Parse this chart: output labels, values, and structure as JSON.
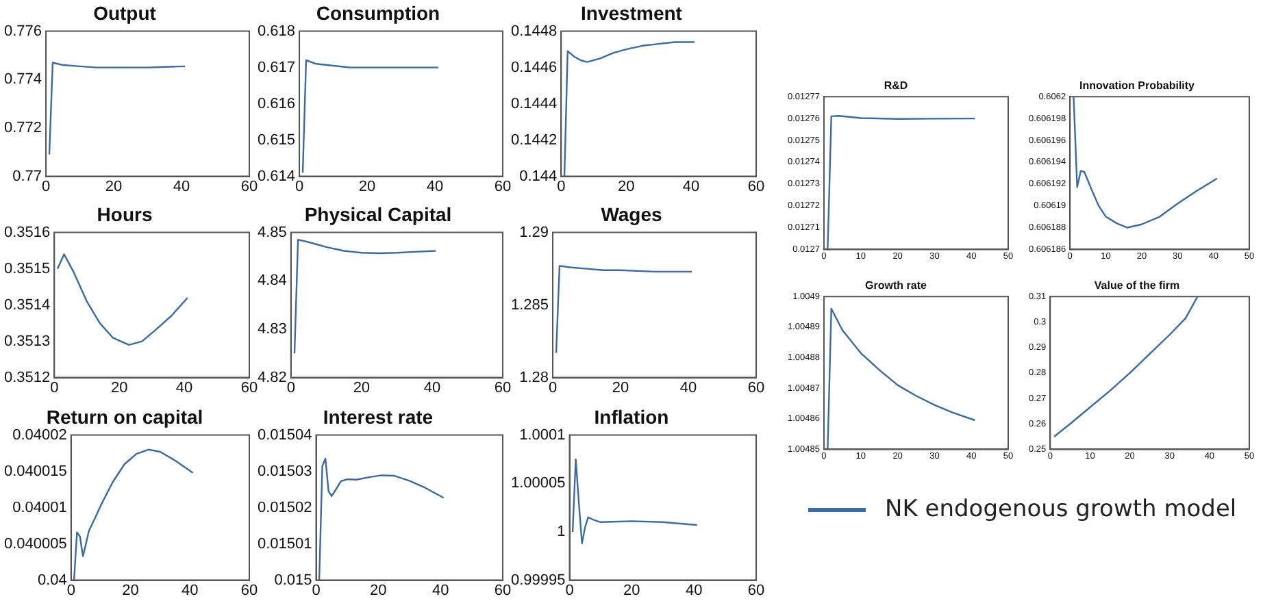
{
  "chart_data": [
    {
      "type": "line",
      "title": "Output",
      "x": [
        1,
        2,
        5,
        10,
        15,
        20,
        30,
        41
      ],
      "values": [
        0.7709,
        0.7747,
        0.7746,
        0.77455,
        0.7745,
        0.7745,
        0.7745,
        0.77455
      ],
      "color": "#3b6aa0",
      "xlim": [
        0,
        60
      ],
      "xticks": [
        0,
        20,
        40,
        60
      ],
      "ylim": [
        0.77,
        0.776
      ],
      "yticks": [
        0.77,
        0.772,
        0.774,
        0.776
      ],
      "grid": false,
      "marker": "none"
    },
    {
      "type": "line",
      "title": "Consumption",
      "x": [
        1,
        2,
        5,
        10,
        15,
        20,
        30,
        41
      ],
      "values": [
        0.6141,
        0.6172,
        0.6171,
        0.61705,
        0.617,
        0.617,
        0.617,
        0.617
      ],
      "color": "#3b6aa0",
      "xlim": [
        0,
        60
      ],
      "xticks": [
        0,
        20,
        40,
        60
      ],
      "ylim": [
        0.614,
        0.618
      ],
      "yticks": [
        0.614,
        0.615,
        0.616,
        0.617,
        0.618
      ],
      "grid": false,
      "marker": "none"
    },
    {
      "type": "line",
      "title": "Investment",
      "x": [
        1,
        2,
        4,
        6,
        8,
        12,
        16,
        20,
        25,
        30,
        35,
        41
      ],
      "values": [
        0.144,
        0.14469,
        0.14466,
        0.14464,
        0.14463,
        0.14465,
        0.14468,
        0.1447,
        0.14472,
        0.14473,
        0.14474,
        0.14474
      ],
      "color": "#3b6aa0",
      "xlim": [
        0,
        60
      ],
      "xticks": [
        0,
        20,
        40,
        60
      ],
      "ylim": [
        0.144,
        0.1448
      ],
      "yticks": [
        0.144,
        0.1442,
        0.1444,
        0.1446,
        0.1448
      ],
      "grid": false,
      "marker": "none"
    },
    {
      "type": "line",
      "title": "Hours",
      "x": [
        1,
        3,
        6,
        10,
        14,
        18,
        23,
        27,
        31,
        36,
        41
      ],
      "values": [
        0.3515,
        0.35154,
        0.35149,
        0.35141,
        0.35135,
        0.35131,
        0.35129,
        0.3513,
        0.35133,
        0.35137,
        0.35142
      ],
      "color": "#3b6aa0",
      "xlim": [
        0,
        60
      ],
      "xticks": [
        0,
        20,
        40,
        60
      ],
      "ylim": [
        0.3512,
        0.3516
      ],
      "yticks": [
        0.3512,
        0.3513,
        0.3514,
        0.3515,
        0.3516
      ],
      "grid": false,
      "marker": "none"
    },
    {
      "type": "line",
      "title": "Physical Capital",
      "x": [
        1,
        2,
        5,
        10,
        15,
        20,
        25,
        30,
        35,
        41
      ],
      "values": [
        4.825,
        4.8485,
        4.848,
        4.847,
        4.8462,
        4.8458,
        4.8457,
        4.8458,
        4.846,
        4.8462
      ],
      "color": "#3b6aa0",
      "xlim": [
        0,
        60
      ],
      "xticks": [
        0,
        20,
        40,
        60
      ],
      "ylim": [
        4.82,
        4.85
      ],
      "yticks": [
        4.82,
        4.83,
        4.84,
        4.85
      ],
      "grid": false,
      "marker": "none"
    },
    {
      "type": "line",
      "title": "Wages",
      "x": [
        1,
        2,
        5,
        10,
        15,
        20,
        30,
        41
      ],
      "values": [
        1.2817,
        1.2877,
        1.2876,
        1.2875,
        1.2874,
        1.2874,
        1.2873,
        1.2873
      ],
      "color": "#3b6aa0",
      "xlim": [
        0,
        60
      ],
      "xticks": [
        0,
        20,
        40,
        60
      ],
      "ylim": [
        1.28,
        1.29
      ],
      "yticks": [
        1.28,
        1.285,
        1.29
      ],
      "grid": false,
      "marker": "none"
    },
    {
      "type": "line",
      "title": "Return on capital",
      "x": [
        1,
        2,
        3,
        4,
        5,
        6,
        8,
        10,
        14,
        18,
        22,
        26,
        30,
        35,
        41
      ],
      "values": [
        0.04,
        0.0400066,
        0.040006,
        0.0400033,
        0.040005,
        0.0400068,
        0.0400085,
        0.0400103,
        0.0400135,
        0.040016,
        0.0400174,
        0.040018,
        0.0400177,
        0.0400165,
        0.0400148
      ],
      "color": "#3b6aa0",
      "xlim": [
        0,
        60
      ],
      "xticks": [
        0,
        20,
        40,
        60
      ],
      "ylim": [
        0.04,
        0.04002
      ],
      "yticks": [
        0.04,
        0.040005,
        0.04001,
        0.040015,
        0.04002
      ],
      "grid": false,
      "marker": "none"
    },
    {
      "type": "line",
      "title": "Interest rate",
      "x": [
        1,
        2,
        3,
        4,
        5,
        6,
        8,
        10,
        13,
        17,
        21,
        25,
        30,
        35,
        41
      ],
      "values": [
        0.015,
        0.0150315,
        0.0150335,
        0.0150245,
        0.0150232,
        0.0150245,
        0.0150273,
        0.0150278,
        0.0150277,
        0.0150284,
        0.0150289,
        0.0150288,
        0.0150274,
        0.0150255,
        0.0150227
      ],
      "color": "#3b6aa0",
      "xlim": [
        0,
        60
      ],
      "xticks": [
        0,
        20,
        40,
        60
      ],
      "ylim": [
        0.015,
        0.01504
      ],
      "yticks": [
        0.015,
        0.01501,
        0.01502,
        0.01503,
        0.01504
      ],
      "grid": false,
      "marker": "none"
    },
    {
      "type": "line",
      "title": "Inflation",
      "x": [
        1,
        2,
        3,
        4,
        5,
        6,
        8,
        10,
        20,
        30,
        41
      ],
      "values": [
        1.0,
        1.000075,
        1.00003,
        0.999988,
        1.000005,
        1.000015,
        1.000012,
        1.00001,
        1.000011,
        1.00001,
        1.000007
      ],
      "color": "#3b6aa0",
      "xlim": [
        0,
        60
      ],
      "xticks": [
        0,
        20,
        40,
        60
      ],
      "ylim": [
        0.99995,
        1.0001
      ],
      "yticks": [
        0.99995,
        1,
        1.00005,
        1.0001
      ],
      "grid": false,
      "marker": "none"
    },
    {
      "type": "line",
      "title": "R&D",
      "x": [
        1,
        2,
        4,
        10,
        20,
        30,
        41
      ],
      "values": [
        0.0127,
        0.012761,
        0.0127612,
        0.0127602,
        0.0127598,
        0.0127599,
        0.01276
      ],
      "color": "#3b6aa0",
      "xlim": [
        0,
        50
      ],
      "xticks": [
        0,
        10,
        20,
        30,
        40,
        50
      ],
      "ylim": [
        0.0127,
        0.01277
      ],
      "yticks": [
        0.0127,
        0.01271,
        0.01272,
        0.01273,
        0.01274,
        0.01275,
        0.01276,
        0.01277
      ],
      "grid": false,
      "marker": "none"
    },
    {
      "type": "line",
      "title": "Innovation Probability",
      "x": [
        1,
        2,
        3,
        4,
        6,
        8,
        10,
        13,
        16,
        20,
        25,
        30,
        35,
        41
      ],
      "values": [
        0.6062,
        0.6061917,
        0.6061932,
        0.6061931,
        0.6061915,
        0.60619,
        0.606189,
        0.6061884,
        0.606188,
        0.6061883,
        0.606189,
        0.6061902,
        0.6061913,
        0.6061925
      ],
      "color": "#3b6aa0",
      "xlim": [
        0,
        50
      ],
      "xticks": [
        0,
        10,
        20,
        30,
        40,
        50
      ],
      "ylim": [
        0.606186,
        0.6062
      ],
      "yticks": [
        0.606186,
        0.606188,
        0.60619,
        0.606192,
        0.606194,
        0.606196,
        0.606198,
        0.6062
      ],
      "grid": false,
      "marker": "none"
    },
    {
      "type": "line",
      "title": "Growth rate",
      "x": [
        1,
        2,
        5,
        10,
        15,
        20,
        25,
        30,
        35,
        41
      ],
      "values": [
        1.00485,
        1.004896,
        1.004889,
        1.0048815,
        1.004876,
        1.004871,
        1.0048675,
        1.0048645,
        1.004862,
        1.0048595
      ],
      "color": "#3b6aa0",
      "xlim": [
        0,
        50
      ],
      "xticks": [
        0,
        10,
        20,
        30,
        40,
        50
      ],
      "ylim": [
        1.00485,
        1.0049
      ],
      "yticks": [
        1.00485,
        1.00486,
        1.00487,
        1.00488,
        1.00489,
        1.0049
      ],
      "grid": false,
      "marker": "none"
    },
    {
      "type": "line",
      "title": "Value of the firm",
      "series": [
        {
          "name": "NK endogenous growth model",
          "color": "#3b6aa0",
          "x": [
            1,
            5,
            10,
            15,
            20,
            25,
            30,
            34,
            37
          ],
          "values": [
            0.255,
            0.26,
            0.2665,
            0.273,
            0.28,
            0.2875,
            0.295,
            0.3015,
            0.31
          ]
        }
      ],
      "xlim": [
        0,
        50
      ],
      "xticks": [
        0,
        10,
        20,
        30,
        40,
        50
      ],
      "ylim": [
        0.25,
        0.31
      ],
      "yticks": [
        0.25,
        0.26,
        0.27,
        0.28,
        0.29,
        0.3,
        0.31
      ],
      "grid": false,
      "marker": "none",
      "legend": "bottom"
    }
  ]
}
